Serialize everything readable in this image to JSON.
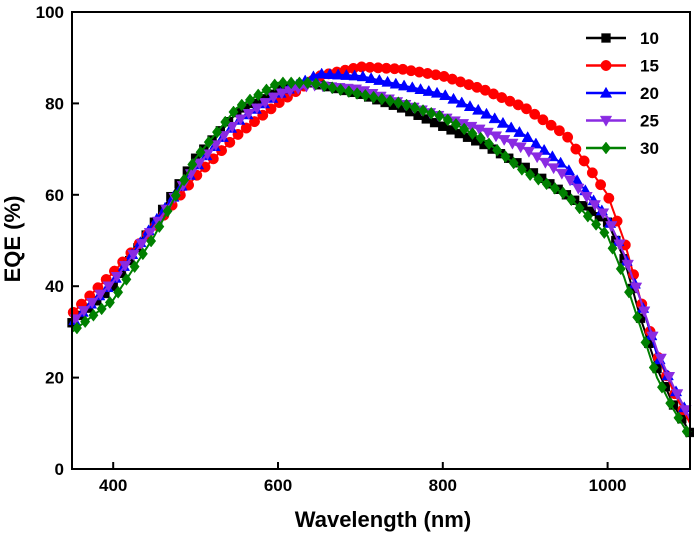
{
  "chart_data": {
    "type": "line",
    "title": "",
    "xlabel": "Wavelength (nm)",
    "ylabel": "EQE (%)",
    "xlim": [
      350,
      1100
    ],
    "ylim": [
      0,
      100
    ],
    "xticks": [
      400,
      600,
      800,
      1000
    ],
    "yticks": [
      0,
      20,
      40,
      60,
      80,
      100
    ],
    "legend_position": "top-right",
    "series": [
      {
        "name": "10",
        "color": "#000000",
        "marker": "square",
        "points": [
          [
            350,
            32
          ],
          [
            400,
            40
          ],
          [
            450,
            54
          ],
          [
            500,
            68
          ],
          [
            550,
            78
          ],
          [
            600,
            83
          ],
          [
            640,
            84.5
          ],
          [
            700,
            82
          ],
          [
            750,
            79
          ],
          [
            800,
            75
          ],
          [
            850,
            71
          ],
          [
            900,
            66
          ],
          [
            950,
            60
          ],
          [
            1000,
            54
          ],
          [
            1020,
            46
          ],
          [
            1040,
            33
          ],
          [
            1060,
            22
          ],
          [
            1080,
            14
          ],
          [
            1100,
            8
          ]
        ]
      },
      {
        "name": "15",
        "color": "#ff0000",
        "marker": "circle",
        "points": [
          [
            350,
            34
          ],
          [
            400,
            43
          ],
          [
            450,
            53
          ],
          [
            500,
            64
          ],
          [
            550,
            73
          ],
          [
            600,
            80
          ],
          [
            650,
            86
          ],
          [
            700,
            88
          ],
          [
            750,
            87.5
          ],
          [
            800,
            86
          ],
          [
            850,
            83
          ],
          [
            900,
            79
          ],
          [
            950,
            73
          ],
          [
            1000,
            60
          ],
          [
            1020,
            50
          ],
          [
            1040,
            37
          ],
          [
            1060,
            25
          ],
          [
            1080,
            17
          ],
          [
            1100,
            10
          ]
        ]
      },
      {
        "name": "20",
        "color": "#0000ff",
        "marker": "triangle-up",
        "points": [
          [
            350,
            32
          ],
          [
            400,
            41
          ],
          [
            450,
            54
          ],
          [
            500,
            66
          ],
          [
            550,
            76
          ],
          [
            600,
            82
          ],
          [
            650,
            86.5
          ],
          [
            700,
            86
          ],
          [
            750,
            84
          ],
          [
            800,
            82
          ],
          [
            850,
            78
          ],
          [
            900,
            73
          ],
          [
            950,
            66
          ],
          [
            1000,
            55
          ],
          [
            1020,
            47
          ],
          [
            1040,
            37
          ],
          [
            1060,
            25
          ],
          [
            1080,
            18
          ],
          [
            1100,
            11
          ]
        ]
      },
      {
        "name": "25",
        "color": "#8a2be2",
        "marker": "triangle-down",
        "points": [
          [
            350,
            32
          ],
          [
            400,
            41
          ],
          [
            450,
            53
          ],
          [
            500,
            66
          ],
          [
            550,
            76
          ],
          [
            600,
            82
          ],
          [
            640,
            84
          ],
          [
            700,
            83
          ],
          [
            750,
            80
          ],
          [
            800,
            77
          ],
          [
            850,
            74
          ],
          [
            900,
            70
          ],
          [
            950,
            64
          ],
          [
            1000,
            55
          ],
          [
            1020,
            47
          ],
          [
            1040,
            37
          ],
          [
            1060,
            26
          ],
          [
            1080,
            18
          ],
          [
            1100,
            11
          ]
        ]
      },
      {
        "name": "30",
        "color": "#008000",
        "marker": "diamond",
        "points": [
          [
            350,
            30
          ],
          [
            400,
            37
          ],
          [
            450,
            51
          ],
          [
            500,
            68
          ],
          [
            550,
            79
          ],
          [
            600,
            84.5
          ],
          [
            640,
            84.5
          ],
          [
            700,
            82
          ],
          [
            750,
            80
          ],
          [
            800,
            77
          ],
          [
            850,
            72
          ],
          [
            900,
            65
          ],
          [
            950,
            60
          ],
          [
            1000,
            51
          ],
          [
            1020,
            42
          ],
          [
            1040,
            31
          ],
          [
            1060,
            20
          ],
          [
            1080,
            13
          ],
          [
            1100,
            7
          ]
        ]
      }
    ]
  }
}
